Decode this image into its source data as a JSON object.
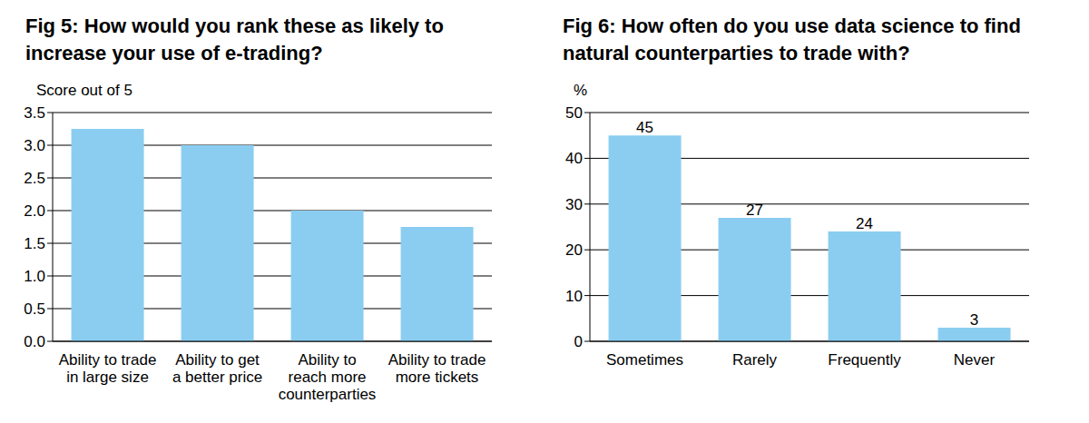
{
  "chart_data": [
    {
      "type": "bar",
      "title": "Fig 5: How would you rank these as likely to increase your use of e-trading?",
      "y_label": "Score out of 5",
      "categories": [
        "Ability to trade\nin large size",
        "Ability to get\na better price",
        "Ability to\nreach more\ncounterparties",
        "Ability to trade\nmore tickets"
      ],
      "values": [
        3.25,
        3.0,
        2.0,
        1.75
      ],
      "color": "#8acdf1",
      "ylim": [
        0,
        3.5
      ],
      "yticks": [
        {
          "value": 0,
          "label": "0.0"
        },
        0.5,
        {
          "value": 1,
          "label": "1.0"
        },
        1.5,
        {
          "value": 2,
          "label": "2.0"
        },
        2.5,
        {
          "value": 3,
          "label": "3.0"
        },
        3.5
      ],
      "grid": true,
      "data_labels": false
    },
    {
      "type": "bar",
      "title": "Fig 6: How often do you use data science to find natural counterparties to trade with?",
      "y_label": "%",
      "categories": [
        "Sometimes",
        "Rarely",
        "Frequently",
        "Never"
      ],
      "values": [
        45,
        27,
        24,
        3
      ],
      "color": "#8acdf1",
      "ylim": [
        0,
        50
      ],
      "yticks": [
        0,
        10,
        20,
        30,
        40,
        50
      ],
      "grid": true,
      "data_labels": true
    }
  ]
}
